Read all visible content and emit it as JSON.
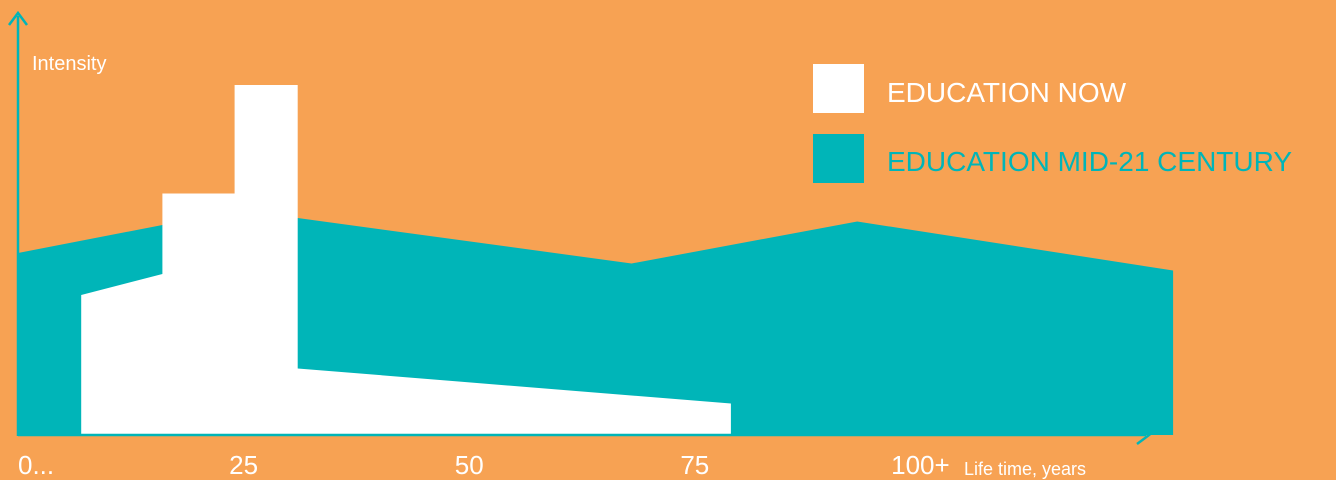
{
  "chart_data": {
    "type": "area",
    "title": "",
    "xlabel": "Life time, years",
    "ylabel": "Intensity",
    "xlim": [
      0,
      125
    ],
    "ylim": [
      0,
      100
    ],
    "x_ticks": [
      {
        "value": 0,
        "label": "0..."
      },
      {
        "value": 25,
        "label": "25"
      },
      {
        "value": 50,
        "label": "50"
      },
      {
        "value": 75,
        "label": "75"
      },
      {
        "value": 100,
        "label": "100+"
      }
    ],
    "legend_position": "top-right",
    "grid": false,
    "series": [
      {
        "name": "EDUCATION NOW",
        "color": "#FFFFFF",
        "points": [
          [
            7,
            0
          ],
          [
            7,
            40
          ],
          [
            16,
            46
          ],
          [
            16,
            69
          ],
          [
            24,
            69
          ],
          [
            24,
            100
          ],
          [
            31,
            100
          ],
          [
            31,
            19
          ],
          [
            79,
            9
          ],
          [
            79,
            0
          ]
        ]
      },
      {
        "name": "EDUCATION MID-21 CENTURY",
        "color": "#00B5B8",
        "points": [
          [
            0,
            0
          ],
          [
            0,
            52
          ],
          [
            16,
            60
          ],
          [
            31,
            62
          ],
          [
            68,
            49
          ],
          [
            93,
            61
          ],
          [
            128,
            47
          ],
          [
            128,
            0
          ]
        ]
      }
    ]
  },
  "colors": {
    "background": "#F7A253",
    "axis": "#00B5B8",
    "text": "#FFFFFF"
  }
}
